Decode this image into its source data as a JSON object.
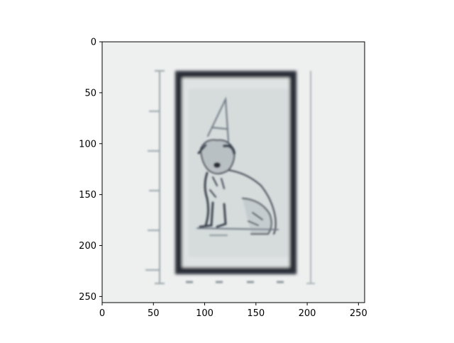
{
  "chart_data": {
    "type": "image",
    "title": "",
    "xlabel": "",
    "ylabel": "",
    "xlim": [
      0,
      256
    ],
    "ylim": [
      256,
      0
    ],
    "xticks": [
      0,
      50,
      100,
      150,
      200,
      250
    ],
    "yticks": [
      0,
      50,
      100,
      150,
      200,
      250
    ],
    "xtick_labels": [
      "0",
      "50",
      "100",
      "150",
      "200",
      "250"
    ],
    "ytick_labels": [
      "0",
      "50",
      "100",
      "150",
      "200",
      "250"
    ],
    "grid": false,
    "image_description": "blurry grayscale image of a sketched dog in a dark rectangular frame",
    "colors": {
      "background": "#eef0f0",
      "frame": "#2a2f38",
      "inner": "#dfe3e3",
      "sketch": "#3c4450"
    }
  }
}
